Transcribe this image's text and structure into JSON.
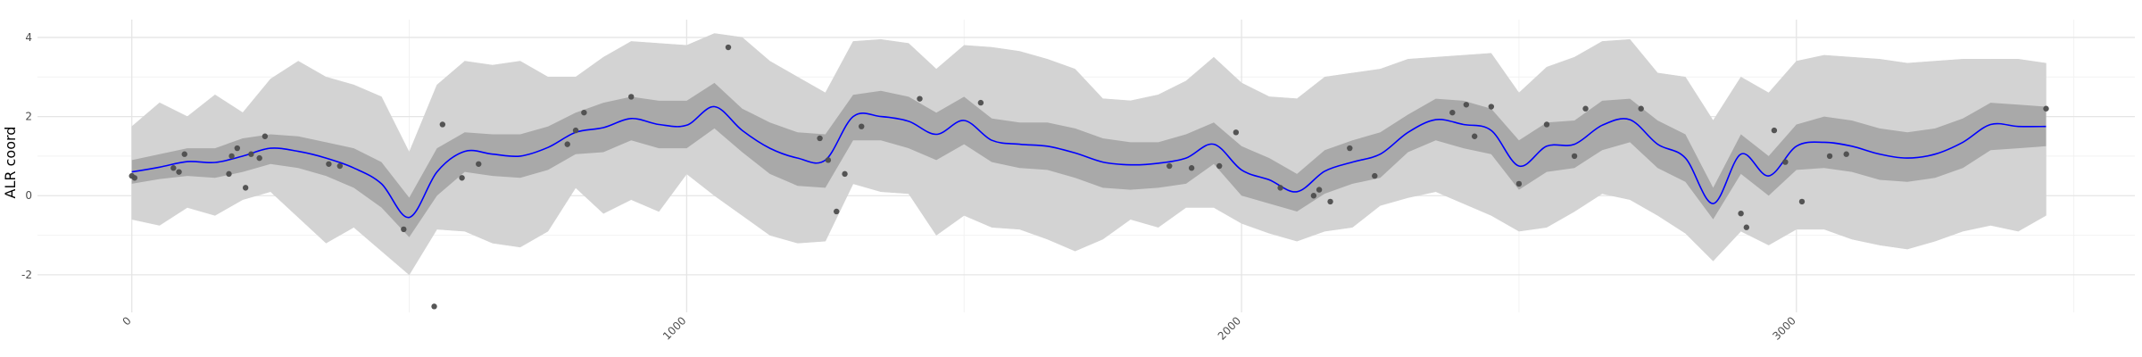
{
  "chart_data": {
    "type": "line",
    "title": "",
    "xlabel": "",
    "ylabel": "ALR coord",
    "xlim": [
      -170,
      3610
    ],
    "ylim": [
      -2.95,
      4.45
    ],
    "x_ticks": [
      0,
      1000,
      2000,
      3000
    ],
    "x_tick_labels": [
      "0",
      "1000",
      "2000",
      "3000"
    ],
    "y_ticks": [
      -2,
      0,
      2,
      4
    ],
    "y_tick_labels": [
      "-2",
      "0",
      "2",
      "4"
    ],
    "grid": true,
    "legend": "none",
    "series": [
      {
        "role": "mean",
        "x": [
          0,
          50,
          100,
          150,
          200,
          250,
          300,
          350,
          400,
          450,
          500,
          550,
          600,
          650,
          700,
          750,
          800,
          850,
          900,
          950,
          1000,
          1050,
          1100,
          1150,
          1200,
          1250,
          1300,
          1350,
          1400,
          1450,
          1500,
          1550,
          1600,
          1650,
          1700,
          1750,
          1800,
          1850,
          1900,
          1950,
          2000,
          2050,
          2100,
          2150,
          2200,
          2250,
          2300,
          2350,
          2400,
          2450,
          2500,
          2550,
          2600,
          2650,
          2700,
          2750,
          2800,
          2850,
          2900,
          2950,
          3000,
          3050,
          3100,
          3150,
          3200,
          3250,
          3300,
          3350,
          3400,
          3450
        ],
        "y": [
          0.6,
          0.72,
          0.86,
          0.84,
          1.0,
          1.2,
          1.12,
          0.95,
          0.7,
          0.3,
          -0.55,
          0.6,
          1.12,
          1.05,
          1.0,
          1.22,
          1.6,
          1.72,
          1.95,
          1.8,
          1.78,
          2.25,
          1.65,
          1.2,
          0.95,
          0.9,
          2.0,
          2.0,
          1.88,
          1.55,
          1.9,
          1.4,
          1.3,
          1.25,
          1.08,
          0.85,
          0.78,
          0.82,
          0.95,
          1.3,
          0.65,
          0.4,
          0.1,
          0.62,
          0.85,
          1.05,
          1.6,
          1.92,
          1.8,
          1.65,
          0.75,
          1.25,
          1.3,
          1.78,
          1.92,
          1.3,
          0.95,
          -0.2,
          1.05,
          0.5,
          1.25,
          1.35,
          1.25,
          1.05,
          0.95,
          1.05,
          1.35,
          1.8,
          1.75,
          1.75
        ],
        "color": "#0000ff"
      },
      {
        "role": "inner_band",
        "x": [
          0,
          50,
          100,
          150,
          200,
          250,
          300,
          350,
          400,
          450,
          500,
          550,
          600,
          650,
          700,
          750,
          800,
          850,
          900,
          950,
          1000,
          1050,
          1100,
          1150,
          1200,
          1250,
          1300,
          1350,
          1400,
          1450,
          1500,
          1550,
          1600,
          1650,
          1700,
          1750,
          1800,
          1850,
          1900,
          1950,
          2000,
          2050,
          2100,
          2150,
          2200,
          2250,
          2300,
          2350,
          2400,
          2450,
          2500,
          2550,
          2600,
          2650,
          2700,
          2750,
          2800,
          2850,
          2900,
          2950,
          3000,
          3050,
          3100,
          3150,
          3200,
          3250,
          3300,
          3350,
          3400,
          3450
        ],
        "lower": [
          0.3,
          0.42,
          0.5,
          0.45,
          0.6,
          0.8,
          0.7,
          0.5,
          0.2,
          -0.3,
          -1.05,
          0.0,
          0.6,
          0.5,
          0.45,
          0.65,
          1.05,
          1.1,
          1.4,
          1.2,
          1.2,
          1.7,
          1.1,
          0.55,
          0.25,
          0.2,
          1.4,
          1.4,
          1.2,
          0.9,
          1.3,
          0.85,
          0.7,
          0.65,
          0.45,
          0.2,
          0.15,
          0.2,
          0.3,
          0.8,
          0.0,
          -0.2,
          -0.4,
          0.05,
          0.3,
          0.45,
          1.1,
          1.4,
          1.2,
          1.05,
          0.15,
          0.6,
          0.7,
          1.15,
          1.35,
          0.7,
          0.35,
          -0.6,
          0.55,
          0.0,
          0.65,
          0.7,
          0.6,
          0.4,
          0.35,
          0.45,
          0.7,
          1.15,
          1.2,
          1.25
        ],
        "upper": [
          0.9,
          1.05,
          1.2,
          1.2,
          1.45,
          1.55,
          1.5,
          1.35,
          1.2,
          0.85,
          -0.05,
          1.2,
          1.6,
          1.55,
          1.55,
          1.75,
          2.1,
          2.35,
          2.5,
          2.4,
          2.4,
          2.85,
          2.2,
          1.85,
          1.6,
          1.55,
          2.55,
          2.65,
          2.5,
          2.1,
          2.5,
          1.95,
          1.85,
          1.85,
          1.7,
          1.45,
          1.35,
          1.35,
          1.55,
          1.85,
          1.25,
          0.95,
          0.55,
          1.15,
          1.4,
          1.6,
          2.05,
          2.45,
          2.4,
          2.2,
          1.4,
          1.85,
          1.9,
          2.4,
          2.45,
          1.9,
          1.55,
          0.2,
          1.55,
          1.0,
          1.8,
          2.0,
          1.9,
          1.7,
          1.6,
          1.7,
          1.95,
          2.35,
          2.3,
          2.25
        ],
        "color": "#a9a9a9"
      },
      {
        "role": "outer_band",
        "x": [
          0,
          50,
          100,
          150,
          200,
          250,
          300,
          350,
          400,
          450,
          500,
          550,
          600,
          650,
          700,
          750,
          800,
          850,
          900,
          950,
          1000,
          1050,
          1100,
          1150,
          1200,
          1250,
          1300,
          1350,
          1400,
          1450,
          1500,
          1550,
          1600,
          1650,
          1700,
          1750,
          1800,
          1850,
          1900,
          1950,
          2000,
          2050,
          2100,
          2150,
          2200,
          2250,
          2300,
          2350,
          2400,
          2450,
          2500,
          2550,
          2600,
          2650,
          2700,
          2750,
          2800,
          2850,
          2900,
          2950,
          3000,
          3050,
          3100,
          3150,
          3200,
          3250,
          3300,
          3350,
          3400,
          3450
        ],
        "lower": [
          -0.6,
          -0.75,
          -0.3,
          -0.5,
          -0.1,
          0.1,
          -0.55,
          -1.2,
          -0.8,
          -1.4,
          -2.0,
          -0.85,
          -0.9,
          -1.2,
          -1.3,
          -0.9,
          0.2,
          -0.45,
          -0.1,
          -0.4,
          0.55,
          0.0,
          -0.5,
          -1.0,
          -1.2,
          -1.15,
          0.3,
          0.1,
          0.05,
          -1.0,
          -0.5,
          -0.8,
          -0.85,
          -1.1,
          -1.4,
          -1.1,
          -0.6,
          -0.8,
          -0.3,
          -0.3,
          -0.7,
          -0.95,
          -1.15,
          -0.9,
          -0.8,
          -0.25,
          -0.05,
          0.1,
          -0.2,
          -0.5,
          -0.9,
          -0.8,
          -0.4,
          0.05,
          -0.1,
          -0.5,
          -0.95,
          -1.65,
          -0.9,
          -1.25,
          -0.85,
          -0.85,
          -1.1,
          -1.25,
          -1.35,
          -1.15,
          -0.9,
          -0.75,
          -0.9,
          -0.5
        ],
        "upper": [
          1.75,
          2.35,
          2.0,
          2.55,
          2.1,
          2.95,
          3.4,
          3.0,
          2.8,
          2.5,
          1.1,
          2.8,
          3.4,
          3.3,
          3.4,
          3.0,
          3.0,
          3.5,
          3.9,
          3.85,
          3.8,
          4.1,
          4.0,
          3.4,
          3.0,
          2.6,
          3.9,
          3.95,
          3.85,
          3.2,
          3.8,
          3.75,
          3.65,
          3.45,
          3.2,
          2.45,
          2.4,
          2.55,
          2.9,
          3.5,
          2.85,
          2.5,
          2.45,
          3.0,
          3.1,
          3.2,
          3.45,
          3.5,
          3.55,
          3.6,
          2.6,
          3.25,
          3.5,
          3.9,
          3.95,
          3.1,
          3.0,
          1.9,
          3.0,
          2.6,
          3.4,
          3.55,
          3.5,
          3.45,
          3.35,
          3.4,
          3.45,
          3.45,
          3.45,
          3.35
        ],
        "color": "#d3d3d3"
      },
      {
        "role": "observed_points",
        "x": [
          0,
          5,
          75,
          85,
          95,
          175,
          180,
          190,
          205,
          215,
          230,
          240,
          355,
          375,
          490,
          545,
          560,
          595,
          625,
          785,
          800,
          815,
          900,
          1075,
          1240,
          1255,
          1270,
          1285,
          1315,
          1420,
          1530,
          1870,
          1910,
          1960,
          1990,
          2070,
          2130,
          2140,
          2160,
          2195,
          2240,
          2380,
          2405,
          2420,
          2450,
          2500,
          2550,
          2600,
          2620,
          2720,
          2900,
          2910,
          2960,
          2980,
          3010,
          3060,
          3090,
          3450
        ],
        "y": [
          0.5,
          0.45,
          0.7,
          0.6,
          1.05,
          0.55,
          1.0,
          1.2,
          0.2,
          1.05,
          0.95,
          1.5,
          0.8,
          0.75,
          -0.85,
          -2.8,
          1.8,
          0.45,
          0.8,
          1.3,
          1.65,
          2.1,
          2.5,
          3.75,
          1.45,
          0.9,
          -0.4,
          0.55,
          1.75,
          2.45,
          2.35,
          0.75,
          0.7,
          0.75,
          1.6,
          0.2,
          0.0,
          0.15,
          -0.15,
          1.2,
          0.5,
          2.1,
          2.3,
          1.5,
          2.25,
          0.3,
          1.8,
          1.0,
          2.2,
          2.2,
          -0.45,
          -0.8,
          1.65,
          0.85,
          -0.15,
          1.0,
          1.05,
          2.2
        ],
        "color": "#4d4d4d"
      }
    ]
  }
}
